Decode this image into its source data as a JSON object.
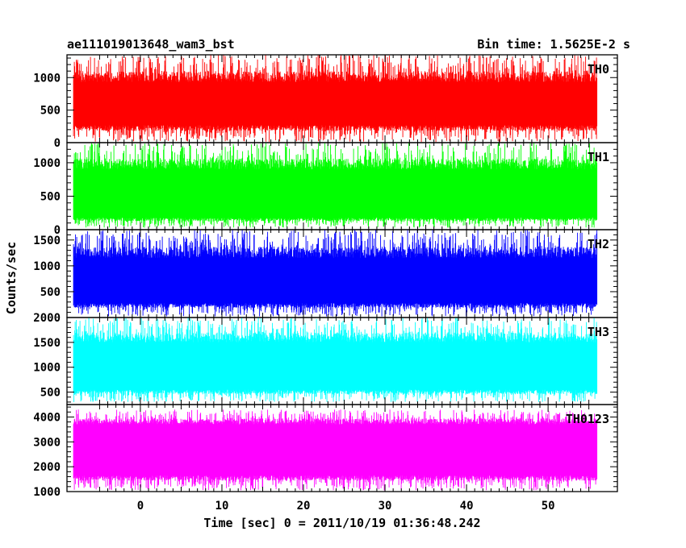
{
  "chart_data": {
    "type": "line",
    "title": "ae111019013648_wam3_bst",
    "bin_time": "Bin time: 1.5625E-2 s",
    "xlabel": "Time [sec] 0 = 2011/10/19 01:36:48.242",
    "ylabel": "Counts/sec",
    "xlim": [
      -9,
      58.5
    ],
    "data_x_range": [
      -8.2,
      56.0
    ],
    "xticks": [
      0,
      10,
      20,
      30,
      40,
      50
    ],
    "x_tick_labels": [
      "0",
      "10",
      "20",
      "30",
      "40",
      "50"
    ],
    "grid": false,
    "legend": "none",
    "panels": [
      {
        "name": "TH0",
        "color": "#ff0000",
        "ylim": [
          0,
          1350
        ],
        "yticks": [
          0,
          500,
          1000
        ],
        "y_tick_labels": [
          "0",
          "500",
          "1000"
        ],
        "band": [
          270,
          930
        ],
        "range": [
          10,
          1350
        ]
      },
      {
        "name": "TH1",
        "color": "#00ff00",
        "ylim": [
          0,
          1300
        ],
        "yticks": [
          0,
          500,
          1000
        ],
        "y_tick_labels": [
          "0",
          "500",
          "1000"
        ],
        "band": [
          180,
          900
        ],
        "range": [
          30,
          1300
        ]
      },
      {
        "name": "TH2",
        "color": "#0000ff",
        "ylim": [
          0,
          1700
        ],
        "yticks": [
          500,
          1000,
          1500
        ],
        "y_tick_labels": [
          "500",
          "1000",
          "1500"
        ],
        "band": [
          280,
          1150
        ],
        "range": [
          20,
          1700
        ]
      },
      {
        "name": "TH3",
        "color": "#00ffff",
        "ylim": [
          250,
          2000
        ],
        "yticks": [
          500,
          1000,
          1500,
          2000
        ],
        "y_tick_labels": [
          "500",
          "1000",
          "1500",
          "2000"
        ],
        "band": [
          550,
          1500
        ],
        "range": [
          300,
          2000
        ]
      },
      {
        "name": "TH0123",
        "color": "#ff00ff",
        "ylim": [
          1000,
          4500
        ],
        "yticks": [
          1000,
          2000,
          3000,
          4000
        ],
        "y_tick_labels": [
          "1000",
          "2000",
          "3000",
          "4000"
        ],
        "band": [
          1650,
          3700
        ],
        "range": [
          1050,
          4300
        ]
      }
    ]
  }
}
